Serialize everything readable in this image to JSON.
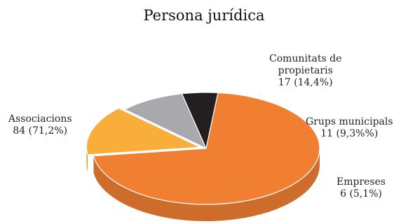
{
  "chart_data": {
    "type": "pie",
    "title": "Persona jurídica",
    "slices": [
      {
        "label": "Associacions",
        "value": 84,
        "percent_text": "84 (71,2%)",
        "color": "#f07f32"
      },
      {
        "label": "Comunitats de propietaris",
        "label_lines": [
          "Comunitats de",
          "propietaris"
        ],
        "value": 17,
        "percent_text": "17 (14,4%)",
        "color": "#f9ad3b"
      },
      {
        "label": "Grups municipals",
        "value": 11,
        "percent_text": "11 (9,3%%)",
        "color": "#a7a9ac"
      },
      {
        "label": "Empreses",
        "value": 6,
        "percent_text": "6 (5,1%)",
        "color": "#231f20"
      }
    ],
    "legend": "none",
    "exploded_slice": "Comunitats de propietaris",
    "style": "3d"
  }
}
